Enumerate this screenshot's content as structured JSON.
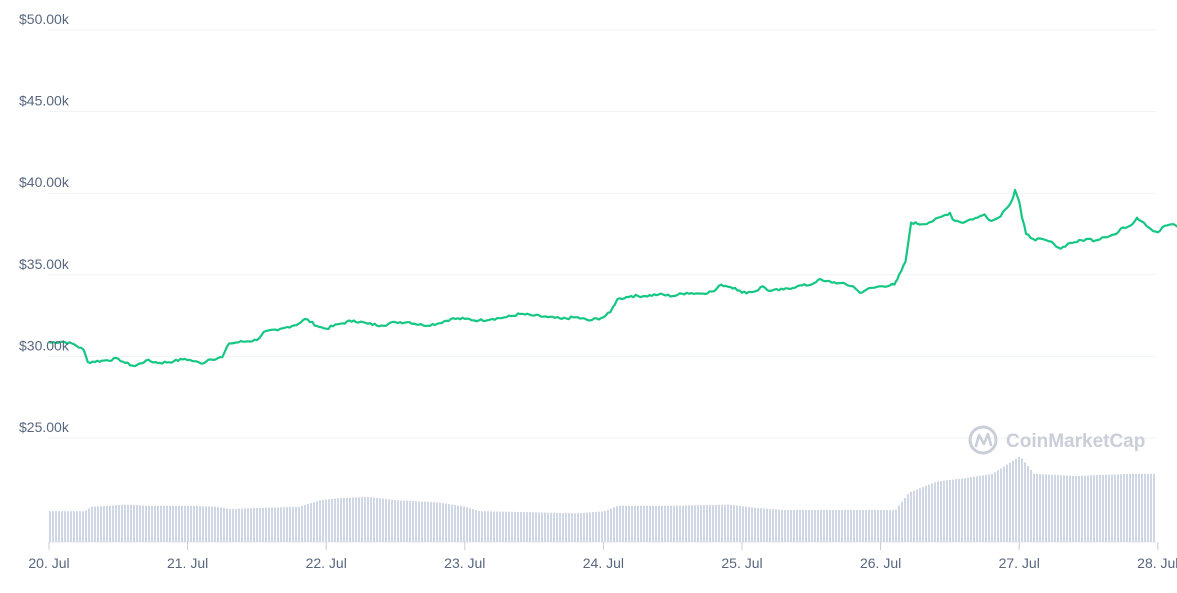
{
  "chart_data": {
    "type": "line",
    "series_color": "#16c784",
    "volume_color": "#cfd6e4",
    "y_ticks": [
      {
        "value": 50000,
        "label": "$50.00k"
      },
      {
        "value": 45000,
        "label": "$45.00k"
      },
      {
        "value": 40000,
        "label": "$40.00k"
      },
      {
        "value": 35000,
        "label": "$35.00k"
      },
      {
        "value": 30000,
        "label": "$30.00k"
      },
      {
        "value": 25000,
        "label": "$25.00k"
      }
    ],
    "x_ticks": [
      {
        "value": 0,
        "label": "20. Jul"
      },
      {
        "value": 1,
        "label": "21. Jul"
      },
      {
        "value": 2,
        "label": "22. Jul"
      },
      {
        "value": 3,
        "label": "23. Jul"
      },
      {
        "value": 4,
        "label": "24. Jul"
      },
      {
        "value": 5,
        "label": "25. Jul"
      },
      {
        "value": 6,
        "label": "26. Jul"
      },
      {
        "value": 7,
        "label": "27. Jul"
      },
      {
        "value": 8,
        "label": "28. Jul"
      }
    ],
    "ylim": [
      20000,
      51000
    ],
    "xlim": [
      0,
      8
    ],
    "price_points": [
      [
        0.0,
        30850
      ],
      [
        0.1,
        30900
      ],
      [
        0.18,
        30750
      ],
      [
        0.25,
        30400
      ],
      [
        0.28,
        29650
      ],
      [
        0.4,
        29750
      ],
      [
        0.5,
        29850
      ],
      [
        0.55,
        29600
      ],
      [
        0.62,
        29400
      ],
      [
        0.7,
        29750
      ],
      [
        0.8,
        29600
      ],
      [
        0.9,
        29700
      ],
      [
        0.98,
        29850
      ],
      [
        1.05,
        29700
      ],
      [
        1.1,
        29550
      ],
      [
        1.15,
        29800
      ],
      [
        1.25,
        29950
      ],
      [
        1.3,
        30800
      ],
      [
        1.4,
        30900
      ],
      [
        1.5,
        31000
      ],
      [
        1.55,
        31500
      ],
      [
        1.65,
        31600
      ],
      [
        1.72,
        31800
      ],
      [
        1.8,
        32000
      ],
      [
        1.85,
        32300
      ],
      [
        1.95,
        31800
      ],
      [
        2.0,
        31700
      ],
      [
        2.1,
        32000
      ],
      [
        2.2,
        32200
      ],
      [
        2.3,
        32000
      ],
      [
        2.4,
        31900
      ],
      [
        2.5,
        32100
      ],
      [
        2.6,
        32100
      ],
      [
        2.7,
        31900
      ],
      [
        2.8,
        32000
      ],
      [
        2.9,
        32300
      ],
      [
        3.0,
        32300
      ],
      [
        3.1,
        32200
      ],
      [
        3.2,
        32300
      ],
      [
        3.3,
        32400
      ],
      [
        3.4,
        32600
      ],
      [
        3.5,
        32500
      ],
      [
        3.6,
        32400
      ],
      [
        3.7,
        32300
      ],
      [
        3.8,
        32400
      ],
      [
        3.9,
        32200
      ],
      [
        4.0,
        32400
      ],
      [
        4.05,
        32700
      ],
      [
        4.1,
        33500
      ],
      [
        4.2,
        33700
      ],
      [
        4.3,
        33700
      ],
      [
        4.4,
        33800
      ],
      [
        4.5,
        33700
      ],
      [
        4.6,
        33900
      ],
      [
        4.7,
        33850
      ],
      [
        4.8,
        34000
      ],
      [
        4.85,
        34400
      ],
      [
        4.95,
        34200
      ],
      [
        5.0,
        33900
      ],
      [
        5.1,
        34000
      ],
      [
        5.15,
        34300
      ],
      [
        5.2,
        34000
      ],
      [
        5.3,
        34100
      ],
      [
        5.4,
        34300
      ],
      [
        5.5,
        34400
      ],
      [
        5.55,
        34700
      ],
      [
        5.6,
        34600
      ],
      [
        5.7,
        34500
      ],
      [
        5.8,
        34300
      ],
      [
        5.85,
        33900
      ],
      [
        5.9,
        34100
      ],
      [
        6.0,
        34300
      ],
      [
        6.1,
        34400
      ],
      [
        6.12,
        34700
      ],
      [
        6.18,
        35800
      ],
      [
        6.22,
        38200
      ],
      [
        6.3,
        38100
      ],
      [
        6.38,
        38300
      ],
      [
        6.45,
        38600
      ],
      [
        6.5,
        38800
      ],
      [
        6.52,
        38400
      ],
      [
        6.6,
        38200
      ],
      [
        6.65,
        38400
      ],
      [
        6.7,
        38500
      ],
      [
        6.75,
        38700
      ],
      [
        6.8,
        38300
      ],
      [
        6.85,
        38500
      ],
      [
        6.9,
        39000
      ],
      [
        6.95,
        39600
      ],
      [
        6.97,
        40200
      ],
      [
        7.0,
        39500
      ],
      [
        7.02,
        38500
      ],
      [
        7.05,
        37500
      ],
      [
        7.1,
        37200
      ],
      [
        7.2,
        37100
      ],
      [
        7.25,
        36900
      ],
      [
        7.3,
        36600
      ],
      [
        7.35,
        36900
      ],
      [
        7.4,
        37000
      ],
      [
        7.5,
        37200
      ],
      [
        7.55,
        37100
      ],
      [
        7.6,
        37300
      ],
      [
        7.7,
        37500
      ],
      [
        7.75,
        37900
      ],
      [
        7.8,
        38000
      ],
      [
        7.85,
        38500
      ],
      [
        7.9,
        38200
      ],
      [
        7.95,
        37800
      ],
      [
        8.0,
        37600
      ],
      [
        8.05,
        38000
      ],
      [
        8.1,
        38100
      ],
      [
        8.15,
        37900
      ]
    ],
    "volume_profile": [
      [
        0.0,
        0.28
      ],
      [
        0.25,
        0.28
      ],
      [
        0.3,
        0.32
      ],
      [
        0.55,
        0.34
      ],
      [
        0.7,
        0.33
      ],
      [
        1.0,
        0.33
      ],
      [
        1.2,
        0.32
      ],
      [
        1.3,
        0.3
      ],
      [
        1.5,
        0.31
      ],
      [
        1.8,
        0.32
      ],
      [
        1.95,
        0.38
      ],
      [
        2.1,
        0.4
      ],
      [
        2.3,
        0.41
      ],
      [
        2.5,
        0.38
      ],
      [
        2.8,
        0.36
      ],
      [
        3.0,
        0.32
      ],
      [
        3.1,
        0.28
      ],
      [
        3.5,
        0.27
      ],
      [
        3.8,
        0.26
      ],
      [
        4.0,
        0.28
      ],
      [
        4.1,
        0.33
      ],
      [
        4.5,
        0.33
      ],
      [
        4.9,
        0.34
      ],
      [
        5.1,
        0.31
      ],
      [
        5.3,
        0.29
      ],
      [
        5.8,
        0.29
      ],
      [
        6.1,
        0.29
      ],
      [
        6.2,
        0.45
      ],
      [
        6.4,
        0.55
      ],
      [
        6.6,
        0.58
      ],
      [
        6.8,
        0.62
      ],
      [
        6.9,
        0.7
      ],
      [
        7.0,
        0.78
      ],
      [
        7.1,
        0.62
      ],
      [
        7.4,
        0.6
      ],
      [
        7.8,
        0.62
      ],
      [
        8.0,
        0.62
      ],
      [
        8.15,
        0.55
      ]
    ],
    "watermark": "CoinMarketCap"
  }
}
